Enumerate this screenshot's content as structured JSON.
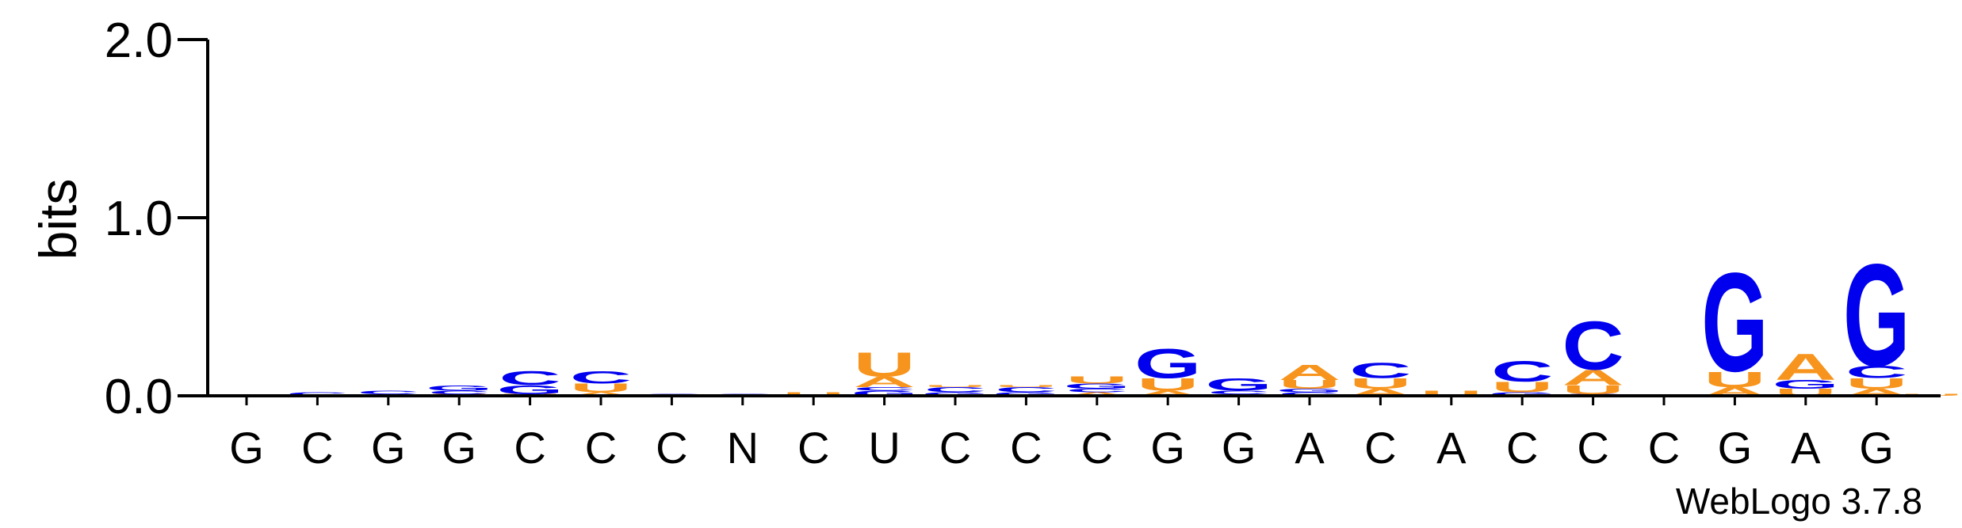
{
  "chart_data": {
    "type": "sequence-logo",
    "ylabel": "bits",
    "ylim": [
      0,
      2.0
    ],
    "yticks": [
      {
        "value": 0.0,
        "label": "0.0"
      },
      {
        "value": 1.0,
        "label": "1.0"
      },
      {
        "value": 2.0,
        "label": "2.0"
      }
    ],
    "x_labels": [
      "G",
      "C",
      "G",
      "G",
      "C",
      "C",
      "C",
      "N",
      "C",
      "U",
      "C",
      "C",
      "C",
      "G",
      "G",
      "A",
      "C",
      "A",
      "C",
      "C",
      "C",
      "G",
      "A",
      "G"
    ],
    "stacks": [
      [],
      [
        {
          "letter": "C",
          "bits": 0.02
        }
      ],
      [
        {
          "letter": "A",
          "bits": 0.01
        },
        {
          "letter": "C",
          "bits": 0.02
        }
      ],
      [
        {
          "letter": "U",
          "bits": 0.01
        },
        {
          "letter": "C",
          "bits": 0.02
        },
        {
          "letter": "G",
          "bits": 0.03
        }
      ],
      [
        {
          "letter": "U",
          "bits": 0.01
        },
        {
          "letter": "G",
          "bits": 0.05
        },
        {
          "letter": "C",
          "bits": 0.08
        }
      ],
      [
        {
          "letter": "A",
          "bits": 0.02
        },
        {
          "letter": "U",
          "bits": 0.05
        },
        {
          "letter": "C",
          "bits": 0.07
        }
      ],
      [
        {
          "letter": "C",
          "bits": 0.01
        }
      ],
      [
        {
          "letter": "C",
          "bits": 0.01
        }
      ],
      [
        {
          "letter": "U",
          "bits": 0.02
        }
      ],
      [
        {
          "letter": "G",
          "bits": 0.03
        },
        {
          "letter": "C",
          "bits": 0.02
        },
        {
          "letter": "A",
          "bits": 0.06
        },
        {
          "letter": "U",
          "bits": 0.14
        }
      ],
      [
        {
          "letter": "G",
          "bits": 0.02
        },
        {
          "letter": "C",
          "bits": 0.03
        },
        {
          "letter": "U",
          "bits": 0.01
        }
      ],
      [
        {
          "letter": "G",
          "bits": 0.02
        },
        {
          "letter": "C",
          "bits": 0.03
        },
        {
          "letter": "U",
          "bits": 0.01
        }
      ],
      [
        {
          "letter": "A",
          "bits": 0.02
        },
        {
          "letter": "C",
          "bits": 0.02
        },
        {
          "letter": "G",
          "bits": 0.03
        },
        {
          "letter": "U",
          "bits": 0.04
        }
      ],
      [
        {
          "letter": "A",
          "bits": 0.03
        },
        {
          "letter": "U",
          "bits": 0.07
        },
        {
          "letter": "G",
          "bits": 0.17
        }
      ],
      [
        {
          "letter": "A",
          "bits": 0.01
        },
        {
          "letter": "C",
          "bits": 0.02
        },
        {
          "letter": "G",
          "bits": 0.07
        }
      ],
      [
        {
          "letter": "C",
          "bits": 0.02
        },
        {
          "letter": "G",
          "bits": 0.02
        },
        {
          "letter": "U",
          "bits": 0.05
        },
        {
          "letter": "A",
          "bits": 0.09
        }
      ],
      [
        {
          "letter": "A",
          "bits": 0.04
        },
        {
          "letter": "U",
          "bits": 0.06
        },
        {
          "letter": "C",
          "bits": 0.09
        }
      ],
      [
        {
          "letter": "U",
          "bits": 0.03
        }
      ],
      [
        {
          "letter": "G",
          "bits": 0.02
        },
        {
          "letter": "U",
          "bits": 0.06
        },
        {
          "letter": "C",
          "bits": 0.12
        }
      ],
      [
        {
          "letter": "G",
          "bits": 0.01
        },
        {
          "letter": "U",
          "bits": 0.05
        },
        {
          "letter": "A",
          "bits": 0.09
        },
        {
          "letter": "C",
          "bits": 0.28
        }
      ],
      [],
      [
        {
          "letter": "A",
          "bits": 0.05
        },
        {
          "letter": "U",
          "bits": 0.09
        },
        {
          "letter": "G",
          "bits": 0.57
        }
      ],
      [
        {
          "letter": "U",
          "bits": 0.04
        },
        {
          "letter": "G",
          "bits": 0.05
        },
        {
          "letter": "A",
          "bits": 0.15
        }
      ],
      [
        {
          "letter": "A",
          "bits": 0.04
        },
        {
          "letter": "U",
          "bits": 0.06
        },
        {
          "letter": "C",
          "bits": 0.07
        },
        {
          "letter": "G",
          "bits": 0.59
        }
      ]
    ],
    "trailing_stack": [
      {
        "letter": "U",
        "bits": 0.01
      }
    ],
    "colors": {
      "G": "#0000ee",
      "C": "#0000ee",
      "A": "#f7941d",
      "U": "#f7941d"
    },
    "footer": "WebLogo 3.7.8"
  }
}
